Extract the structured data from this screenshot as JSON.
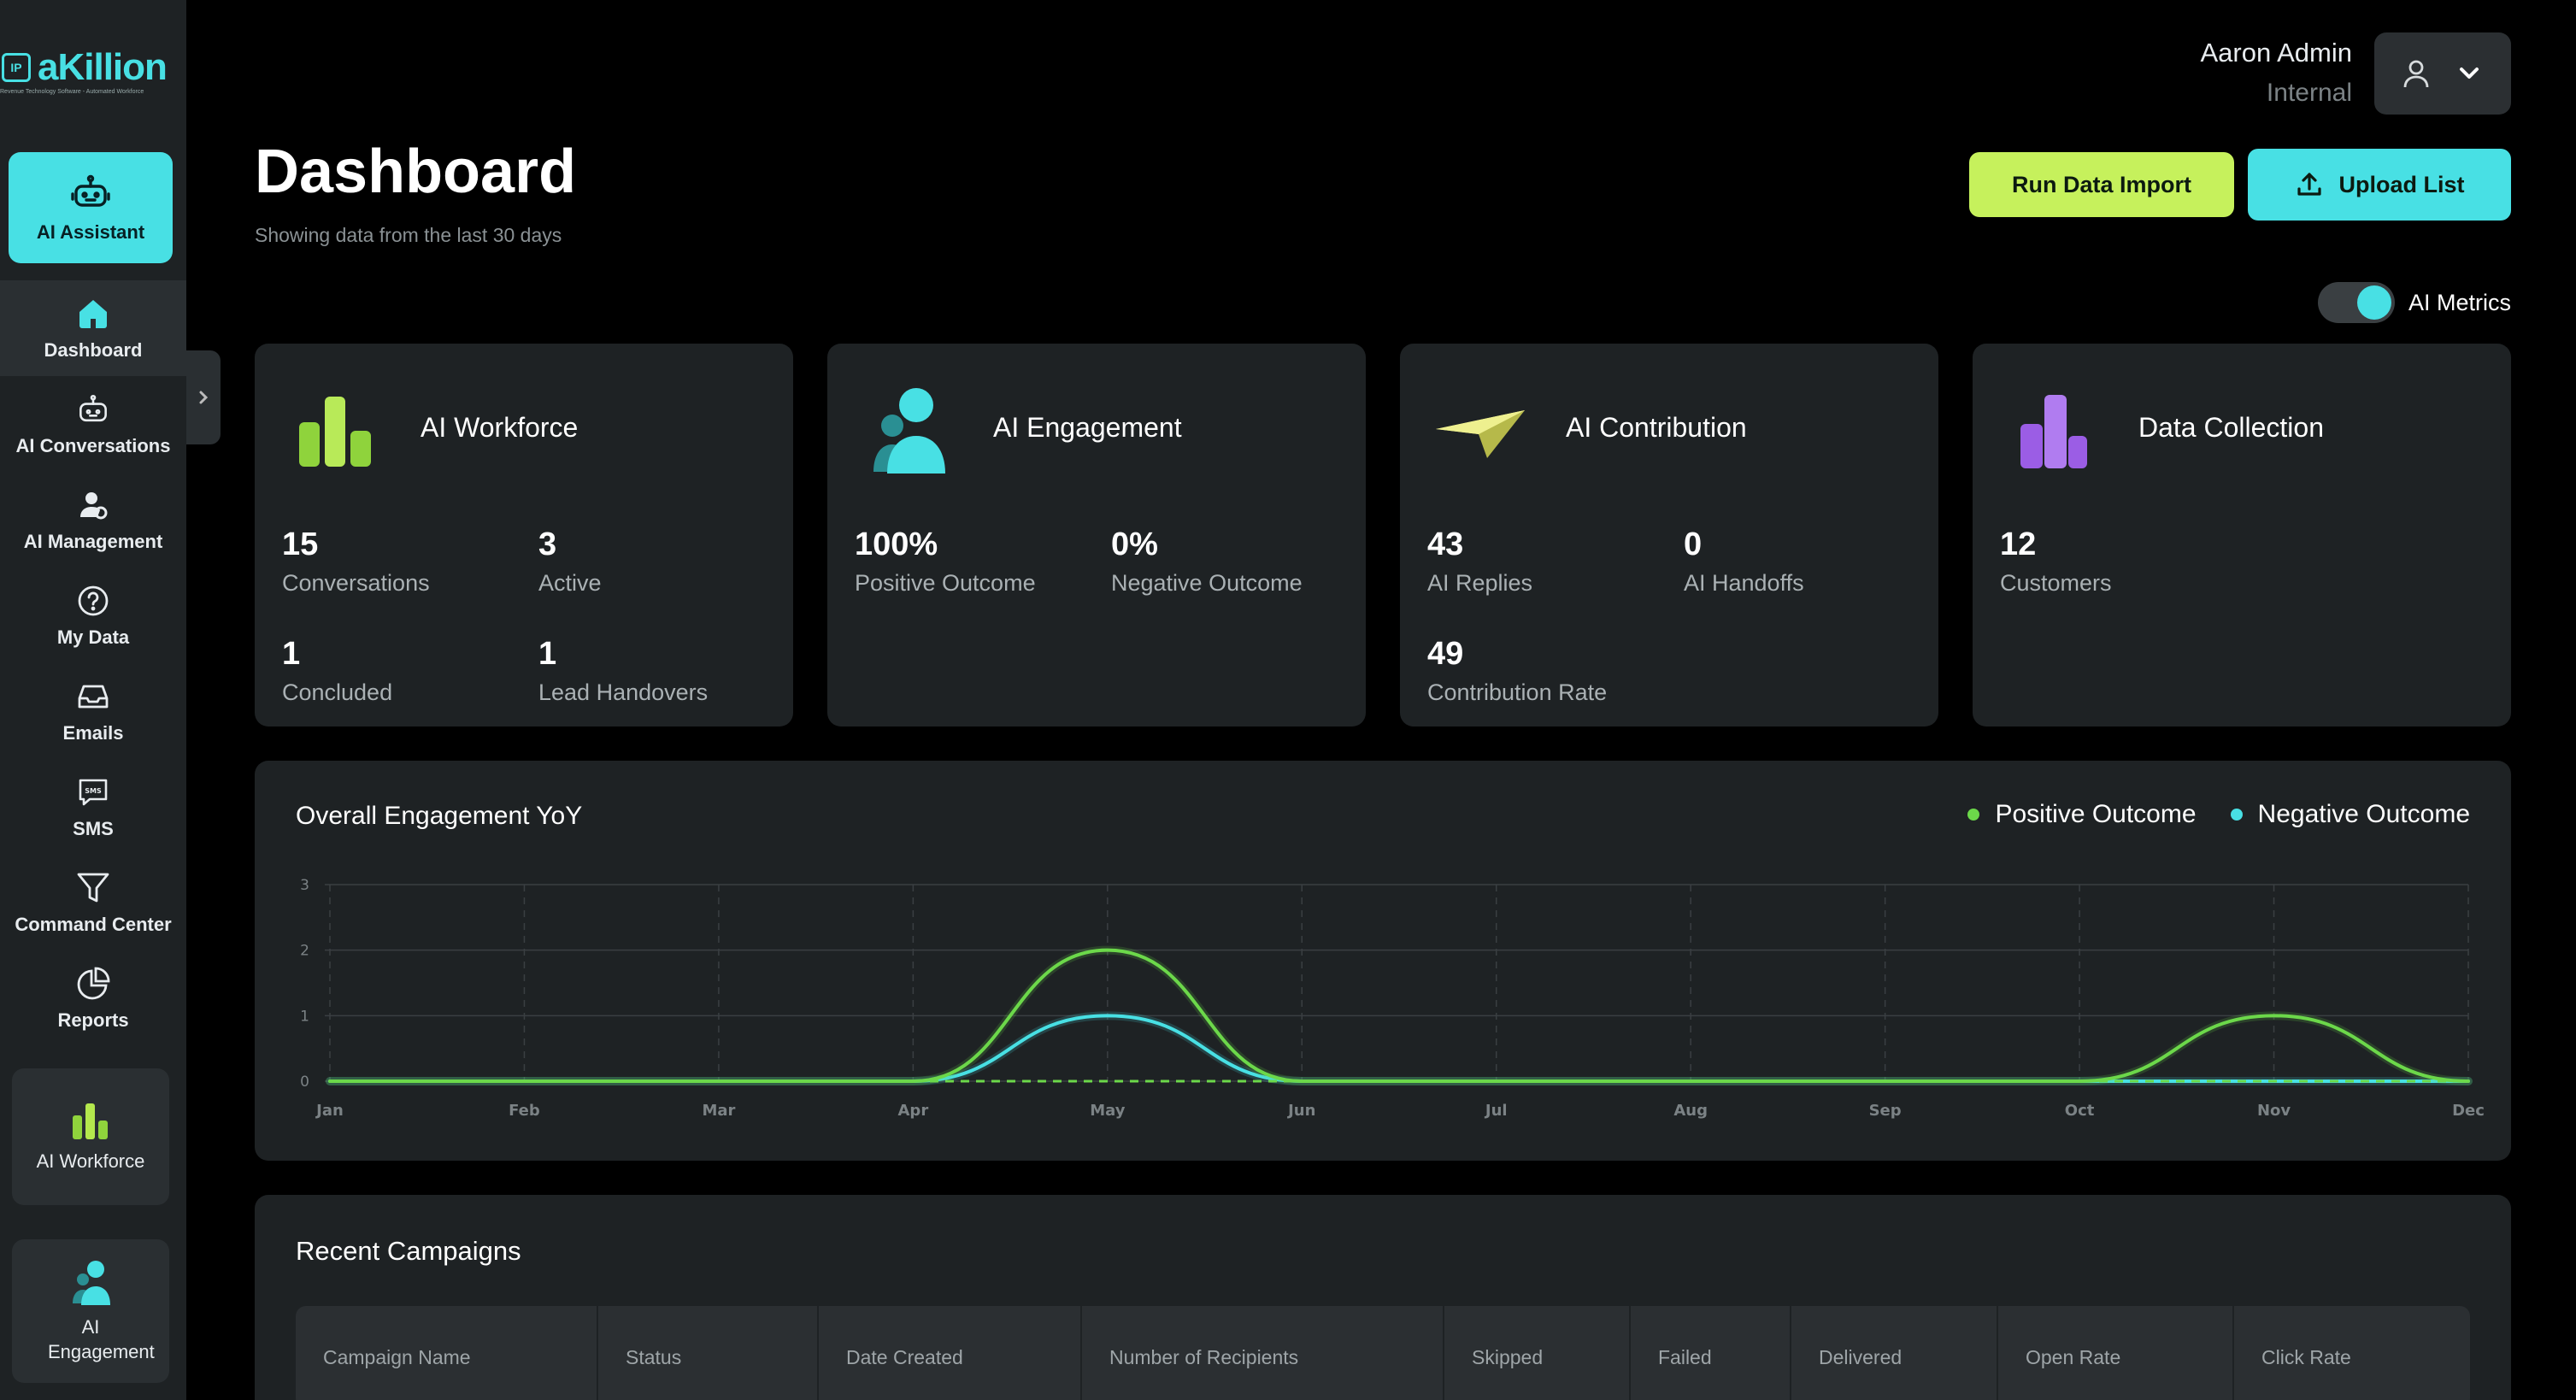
{
  "brand": {
    "name": "aKillion",
    "mark": "IP",
    "tagline": "Revenue Technology Software - Automated Workforce",
    "accent": "#48e0e4",
    "lime": "#c6f15c"
  },
  "sidebar": {
    "assistant": {
      "label": "AI Assistant",
      "icon": "robot-icon"
    },
    "items": [
      {
        "label": "Dashboard",
        "icon": "home-icon",
        "active": true
      },
      {
        "label": "AI Conversations",
        "icon": "robot-icon"
      },
      {
        "label": "AI Management",
        "icon": "person-gear-icon"
      },
      {
        "label": "My Data",
        "icon": "help-circle-icon"
      },
      {
        "label": "Emails",
        "icon": "inbox-icon"
      },
      {
        "label": "SMS",
        "icon": "sms-icon"
      },
      {
        "label": "Command Center",
        "icon": "filter-icon"
      },
      {
        "label": "Reports",
        "icon": "pie-chart-icon"
      }
    ],
    "cards": [
      {
        "label": "AI Workforce",
        "icon": "bar-chart-icon"
      },
      {
        "label": "AI Engagement",
        "icon": "people-icon"
      }
    ],
    "toggle_icon": "chevron-right-icon"
  },
  "header": {
    "user_name": "Aaron Admin",
    "user_role": "Internal",
    "title": "Dashboard",
    "subtitle": "Showing data from the last 30 days",
    "run_import_label": "Run Data Import",
    "upload_label": "Upload List",
    "toggle_label": "AI Metrics"
  },
  "cards": [
    {
      "title": "AI Workforce",
      "icon": "workforce-bars-icon",
      "metrics": [
        {
          "value": "15",
          "label": "Conversations"
        },
        {
          "value": "3",
          "label": "Active"
        },
        {
          "value": "1",
          "label": "Concluded"
        },
        {
          "value": "1",
          "label": "Lead Handovers"
        }
      ]
    },
    {
      "title": "AI Engagement",
      "icon": "engagement-people-icon",
      "metrics": [
        {
          "value": "100%",
          "label": "Positive Outcome"
        },
        {
          "value": "0%",
          "label": "Negative Outcome"
        }
      ]
    },
    {
      "title": "AI Contribution",
      "icon": "paper-plane-icon",
      "metrics": [
        {
          "value": "43",
          "label": "AI Replies"
        },
        {
          "value": "0",
          "label": "AI Handoffs"
        },
        {
          "value": "49",
          "label": "Contribution Rate"
        }
      ]
    },
    {
      "title": "Data Collection",
      "icon": "purple-bars-icon",
      "metrics": [
        {
          "value": "12",
          "label": "Customers"
        }
      ]
    }
  ],
  "chart_data": {
    "type": "line",
    "title": "Overall Engagement YoY",
    "categories": [
      "Jan",
      "Feb",
      "Mar",
      "Apr",
      "May",
      "Jun",
      "Jul",
      "Aug",
      "Sep",
      "Oct",
      "Nov",
      "Dec"
    ],
    "ylim": [
      0,
      3
    ],
    "yticks": [
      0,
      1,
      2,
      3
    ],
    "grid": true,
    "legend": "top-right",
    "series": [
      {
        "name": "Positive Outcome",
        "color": "#6cd84a",
        "values": [
          0,
          0,
          0,
          0,
          2,
          0,
          0,
          0,
          0,
          0,
          1,
          0
        ]
      },
      {
        "name": "Negative Outcome",
        "color": "#48e0e4",
        "values": [
          0,
          0,
          0,
          0,
          1,
          0,
          0,
          0,
          0,
          0,
          0,
          0
        ]
      }
    ]
  },
  "campaigns": {
    "title": "Recent Campaigns",
    "columns": [
      "Campaign Name",
      "Status",
      "Date Created",
      "Number of Recipients",
      "Skipped",
      "Failed",
      "Delivered",
      "Open Rate",
      "Click Rate"
    ]
  }
}
